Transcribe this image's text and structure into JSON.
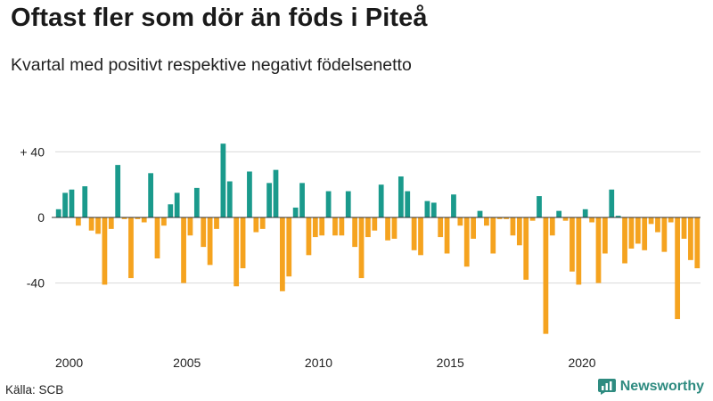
{
  "header": {
    "title": "Oftast fler som dör än föds i Piteå",
    "subtitle": "Kvartal med positivt respektive negativt födelsenetto"
  },
  "footer": {
    "source": "Källa: SCB",
    "brand": "Newsworthy",
    "brand_icon": "bar-chart-logo-icon"
  },
  "colors": {
    "positive": "#1a9a8c",
    "negative": "#f5a31f",
    "grid": "#d9d9d9",
    "axis": "#333333",
    "brand": "#2e8b80"
  },
  "chart_data": {
    "type": "bar",
    "title": "Oftast fler som dör än föds i Piteå",
    "subtitle": "Kvartal med positivt respektive negativt födelsenetto",
    "xlabel": "",
    "ylabel": "",
    "ylim": [
      -72,
      50
    ],
    "y_ticks": [
      {
        "value": 40,
        "label": "+ 40"
      },
      {
        "value": 0,
        "label": "0"
      },
      {
        "value": -40,
        "label": "-40"
      }
    ],
    "x_ticks": [
      {
        "index": 0,
        "label": "2000"
      },
      {
        "index": 20,
        "label": "2005"
      },
      {
        "index": 40,
        "label": "2010"
      },
      {
        "index": 60,
        "label": "2015"
      },
      {
        "index": 80,
        "label": "2020"
      }
    ],
    "start_period": "2000 Q1",
    "values": [
      5,
      15,
      17,
      -5,
      19,
      -8,
      -10,
      -41,
      -7,
      32,
      -1,
      -37,
      -1,
      -3,
      27,
      -25,
      -5,
      8,
      15,
      -40,
      -11,
      18,
      -18,
      -29,
      -7,
      45,
      22,
      -42,
      -31,
      28,
      -9,
      -7,
      21,
      29,
      -45,
      -36,
      6,
      21,
      -23,
      -12,
      -11,
      16,
      -11,
      -11,
      16,
      -18,
      -37,
      -12,
      -8,
      20,
      -14,
      -13,
      25,
      16,
      -20,
      -23,
      10,
      9,
      -12,
      -22,
      14,
      -5,
      -30,
      -13,
      4,
      -5,
      -22,
      -1,
      -1,
      -11,
      -17,
      -38,
      -2,
      13,
      -71,
      -11,
      4,
      -2,
      -33,
      -41,
      5,
      -3,
      -40,
      -22,
      17,
      1,
      -28,
      -19,
      -16,
      -20,
      -4,
      -9,
      -21,
      -3,
      -62,
      -13,
      -26,
      -31
    ]
  }
}
